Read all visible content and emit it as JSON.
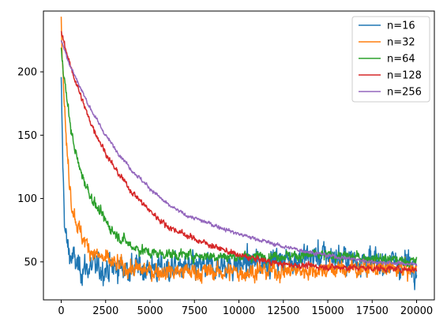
{
  "chart_data": {
    "type": "line",
    "title": "",
    "xlabel": "",
    "ylabel": "",
    "xlim": [
      -1000,
      21000
    ],
    "ylim": [
      20,
      248
    ],
    "x_ticks": [
      0,
      2500,
      5000,
      7500,
      10000,
      12500,
      15000,
      17500,
      20000
    ],
    "x_tick_labels": [
      "0",
      "2500",
      "5000",
      "7500",
      "10000",
      "12500",
      "15000",
      "17500",
      "20000"
    ],
    "y_ticks": [
      50,
      100,
      150,
      200
    ],
    "y_tick_labels": [
      "50",
      "100",
      "150",
      "200"
    ],
    "grid": false,
    "legend_position": "top-right",
    "noisy": true,
    "series": [
      {
        "name": "n=16",
        "color": "#1f77b4",
        "noise": 9,
        "x": [
          0,
          100,
          200,
          300,
          500,
          800,
          1000,
          1500,
          2000,
          3000,
          5000,
          7500,
          10000,
          12500,
          15000,
          17500,
          20000
        ],
        "y": [
          190,
          120,
          80,
          65,
          55,
          50,
          45,
          45,
          45,
          45,
          45,
          45,
          48,
          52,
          55,
          50,
          48
        ]
      },
      {
        "name": "n=32",
        "color": "#ff7f0e",
        "noise": 6,
        "x": [
          0,
          100,
          300,
          600,
          1000,
          1500,
          2000,
          3000,
          4000,
          5000,
          7500,
          10000,
          12500,
          15000,
          17500,
          20000
        ],
        "y": [
          238,
          200,
          140,
          95,
          75,
          62,
          55,
          48,
          44,
          43,
          42,
          42,
          43,
          44,
          45,
          44
        ]
      },
      {
        "name": "n=64",
        "color": "#2ca02c",
        "noise": 3.5,
        "x": [
          0,
          300,
          600,
          1000,
          1500,
          2000,
          2500,
          3000,
          4000,
          5000,
          7500,
          10000,
          12500,
          15000,
          17500,
          20000
        ],
        "y": [
          218,
          180,
          150,
          125,
          107,
          93,
          82,
          73,
          62,
          57,
          55,
          54,
          55,
          55,
          53,
          50
        ]
      },
      {
        "name": "n=128",
        "color": "#d62728",
        "noise": 2,
        "x": [
          0,
          500,
          1000,
          1500,
          2000,
          2500,
          3000,
          4000,
          5000,
          6000,
          7500,
          10000,
          12500,
          15000,
          17500,
          20000
        ],
        "y": [
          232,
          205,
          185,
          165,
          150,
          136,
          124,
          105,
          90,
          78,
          68,
          55,
          48,
          46,
          45,
          44
        ]
      },
      {
        "name": "n=256",
        "color": "#9467bd",
        "noise": 1.3,
        "x": [
          0,
          500,
          1000,
          1500,
          2000,
          2500,
          3000,
          4000,
          5000,
          6000,
          7000,
          8000,
          10000,
          12500,
          15000,
          17500,
          20000
        ],
        "y": [
          225,
          205,
          190,
          175,
          162,
          150,
          140,
          122,
          108,
          95,
          87,
          82,
          72,
          62,
          55,
          50,
          48
        ]
      }
    ]
  }
}
